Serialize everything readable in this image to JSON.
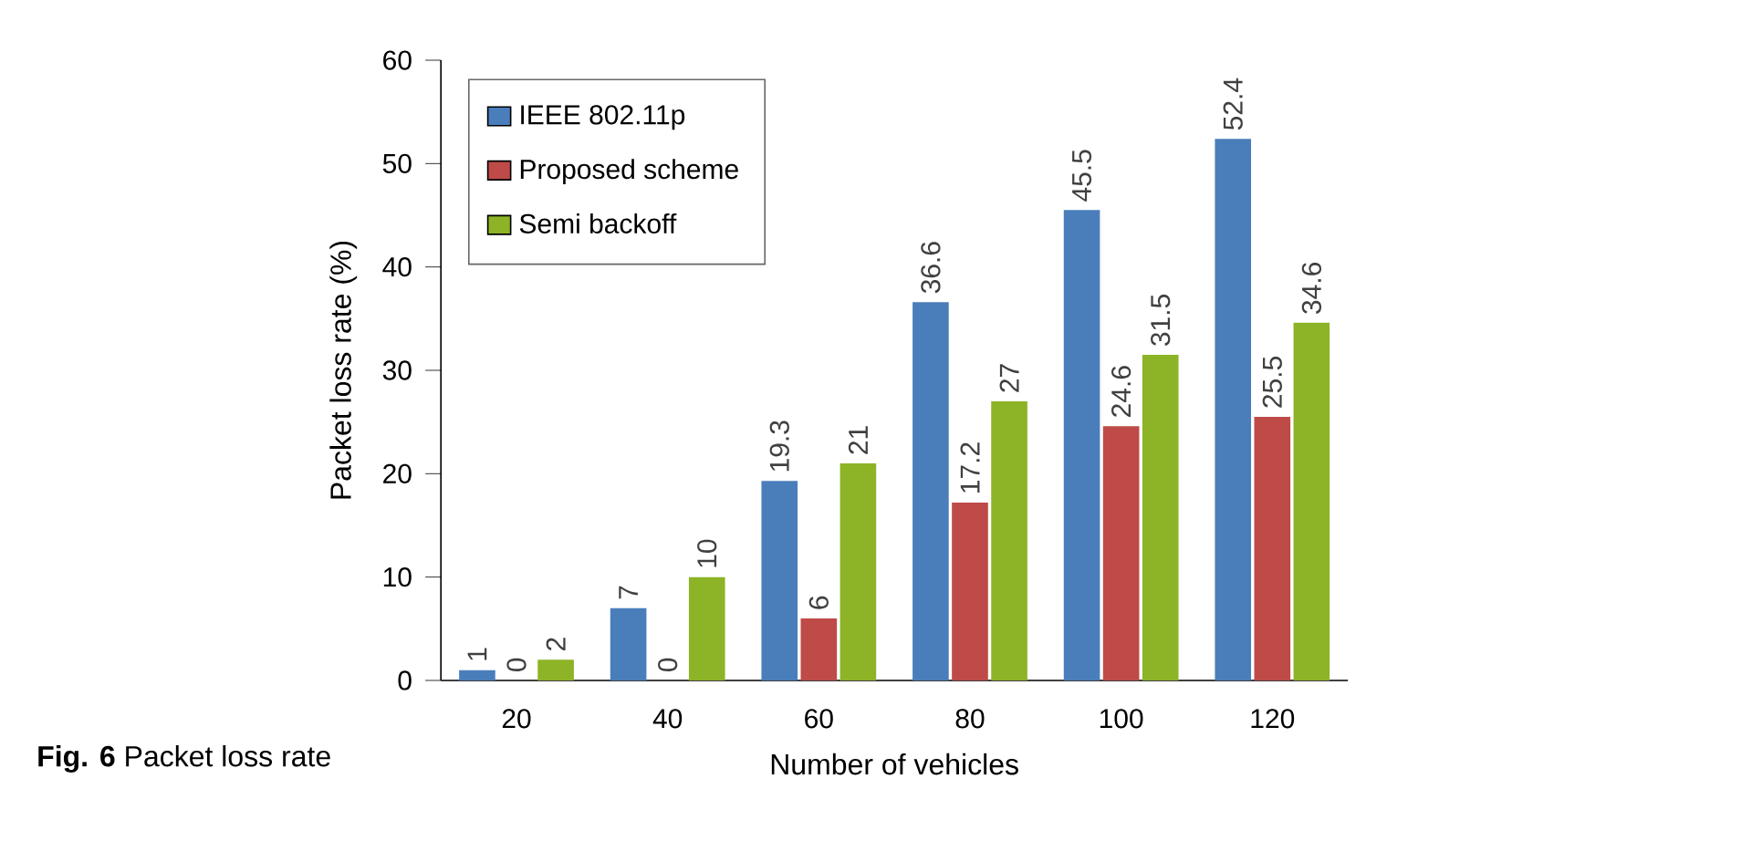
{
  "chart_data": {
    "type": "bar",
    "xlabel": "Number of vehicles",
    "ylabel": "Packet loss rate (%)",
    "categories": [
      "20",
      "40",
      "60",
      "80",
      "100",
      "120"
    ],
    "series": [
      {
        "name": "IEEE 802.11p",
        "color": "#4a7ebb",
        "values": [
          1,
          7,
          19.3,
          36.6,
          45.5,
          52.4
        ]
      },
      {
        "name": "Proposed scheme",
        "color": "#be4b48",
        "values": [
          0,
          0,
          6,
          17.2,
          24.6,
          25.5
        ]
      },
      {
        "name": "Semi backoff",
        "color": "#8db326",
        "values": [
          2,
          10,
          21,
          27,
          31.5,
          34.6
        ]
      }
    ],
    "ylim": [
      0,
      60
    ],
    "yticks": [
      0,
      10,
      20,
      30,
      40,
      50,
      60
    ],
    "data_labels": true,
    "legend": "top left",
    "grid": false,
    "annotations": [
      "**Fig. 6** Packet loss rate"
    ]
  }
}
